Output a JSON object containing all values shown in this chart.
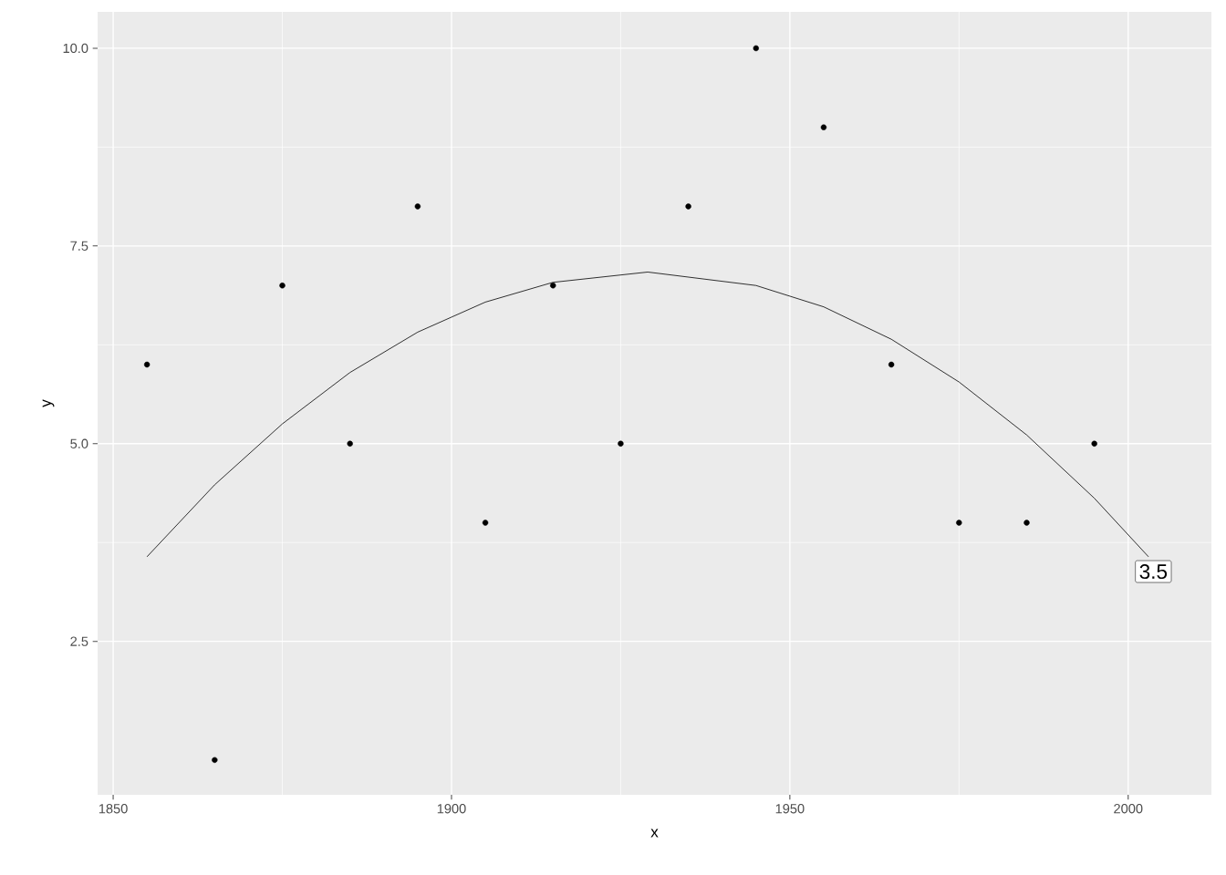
{
  "chart_data": {
    "type": "scatter",
    "xlabel": "x",
    "ylabel": "y",
    "xlim": [
      1847.7,
      2012.3
    ],
    "ylim": [
      0.56,
      10.46
    ],
    "xticks": [
      1850,
      1900,
      1950,
      2000
    ],
    "yticks": [
      {
        "value": 2.5,
        "label": "2.5"
      },
      {
        "value": 5,
        "label": "5.0"
      },
      {
        "value": 7.5,
        "label": "7.5"
      },
      {
        "value": 10,
        "label": "10.0"
      }
    ],
    "grid": true,
    "marker": "circle",
    "series": [
      {
        "color": "#000000",
        "x": [
          1855,
          1865,
          1875,
          1885,
          1895,
          1905,
          1915,
          1925,
          1935,
          1945,
          1955,
          1965,
          1975,
          1985,
          1995
        ],
        "values": [
          6,
          1,
          7,
          5,
          8,
          4,
          7,
          5,
          8,
          10,
          9,
          6,
          4,
          4,
          5
        ]
      },
      {
        "type": "line",
        "color": "#000000",
        "marker": "none",
        "x": [
          1855,
          1865,
          1875,
          1885,
          1895,
          1905,
          1915,
          1929,
          1945,
          1955,
          1965,
          1975,
          1985,
          1995,
          2003
        ],
        "values": [
          3.57,
          4.48,
          5.25,
          5.9,
          6.41,
          6.79,
          7.04,
          7.17,
          7.0,
          6.73,
          6.32,
          5.78,
          5.11,
          4.31,
          3.57
        ]
      }
    ],
    "annotations": [
      {
        "text": "3.5",
        "x": 2003,
        "y": 3.57
      }
    ]
  }
}
